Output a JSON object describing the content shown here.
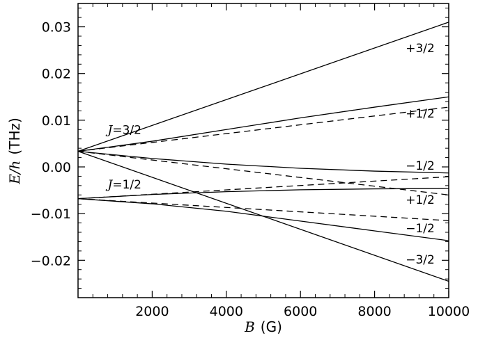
{
  "chart_data": {
    "type": "line",
    "title": "",
    "xlabel": {
      "symbol": "B",
      "unit": "(G)"
    },
    "ylabel": {
      "symbol": "E/h",
      "unit": "(THz)"
    },
    "xlim": [
      0,
      10000
    ],
    "ylim": [
      -0.028,
      0.035
    ],
    "x_ticks": [
      2000,
      4000,
      6000,
      8000,
      10000
    ],
    "x_tick_labels": [
      "2000",
      "4000",
      "6000",
      "8000",
      "10000"
    ],
    "y_ticks": [
      0.03,
      0.02,
      0.01,
      0.0,
      -0.01,
      -0.02
    ],
    "y_tick_labels": [
      "0.03",
      "0.02",
      "0.01",
      "0.00",
      "−0.01",
      "−0.02"
    ],
    "grid": false,
    "series": [
      {
        "style": "solid",
        "x": [
          0,
          10000
        ],
        "y": [
          0.00335,
          0.031
        ]
      },
      {
        "style": "solid",
        "x": [
          0,
          2000,
          4000,
          6000,
          8000,
          10000
        ],
        "y": [
          0.00335,
          0.0055,
          0.008,
          0.0105,
          0.0128,
          0.015
        ]
      },
      {
        "style": "dashed",
        "x": [
          0,
          10000
        ],
        "y": [
          0.00335,
          0.0128
        ]
      },
      {
        "style": "solid",
        "x": [
          0,
          2000,
          4000,
          6000,
          8000,
          10000
        ],
        "y": [
          0.00335,
          0.0018,
          0.0006,
          -0.0003,
          -0.0009,
          -0.0013
        ]
      },
      {
        "style": "dashed",
        "x": [
          0,
          10000
        ],
        "y": [
          0.00335,
          -0.006
        ]
      },
      {
        "style": "solid",
        "x": [
          0,
          10000
        ],
        "y": [
          0.00335,
          -0.0245
        ]
      },
      {
        "style": "dashed",
        "x": [
          0,
          10000
        ],
        "y": [
          -0.0068,
          -0.0021
        ]
      },
      {
        "style": "solid",
        "x": [
          0,
          2000,
          4000,
          6000,
          8000,
          10000
        ],
        "y": [
          -0.0068,
          -0.0059,
          -0.0053,
          -0.0049,
          -0.0047,
          -0.0046
        ]
      },
      {
        "style": "dashed",
        "x": [
          0,
          10000
        ],
        "y": [
          -0.0068,
          -0.0115
        ]
      },
      {
        "style": "solid",
        "x": [
          0,
          2000,
          4000,
          6000,
          8000,
          10000
        ],
        "y": [
          -0.0068,
          -0.0079,
          -0.0095,
          -0.0116,
          -0.0137,
          -0.0158
        ]
      }
    ],
    "annotations": [
      {
        "text": "+3/2",
        "x": 9230,
        "y": 0.0255
      },
      {
        "text": "+1/2",
        "x": 9230,
        "y": 0.0115
      },
      {
        "text": "−1/2",
        "x": 9230,
        "y": 0.0003
      },
      {
        "text": "+1/2",
        "x": 9230,
        "y": -0.007
      },
      {
        "text": "−1/2",
        "x": 9230,
        "y": -0.0131
      },
      {
        "text": "−3/2",
        "x": 9230,
        "y": -0.0198
      }
    ],
    "level_labels": [
      {
        "symbol": "J",
        "text": "=3/2",
        "x": 800,
        "y": 0.008
      },
      {
        "symbol": "J",
        "text": "=1/2",
        "x": 800,
        "y": -0.0037
      }
    ]
  }
}
